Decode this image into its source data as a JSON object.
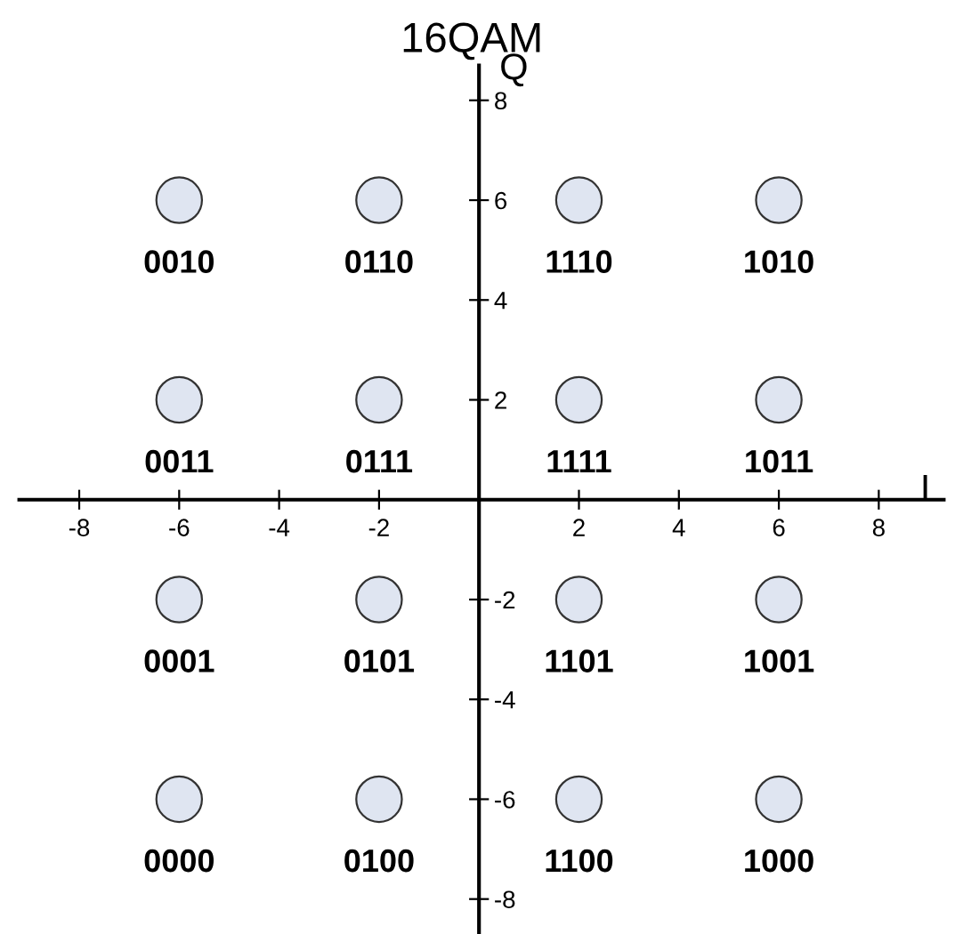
{
  "chart_data": {
    "type": "scatter",
    "title": "16QAM",
    "xlabel": "I",
    "ylabel": "Q",
    "x": [
      -6,
      -2,
      2,
      6,
      -6,
      -2,
      2,
      6,
      -6,
      -2,
      2,
      6,
      -6,
      -2,
      2,
      6
    ],
    "series": [
      {
        "color": "#dfe5f1",
        "values": [
          6,
          6,
          6,
          6,
          2,
          2,
          2,
          2,
          -2,
          -2,
          -2,
          -2,
          -6,
          -6,
          -6,
          -6
        ]
      }
    ],
    "annotations": [
      {
        "text": "0010",
        "x": -6,
        "y": 6
      },
      {
        "text": "0110",
        "x": -2,
        "y": 6
      },
      {
        "text": "1110",
        "x": 2,
        "y": 6
      },
      {
        "text": "1010",
        "x": 6,
        "y": 6
      },
      {
        "text": "0011",
        "x": -6,
        "y": 2
      },
      {
        "text": "0111",
        "x": -2,
        "y": 2
      },
      {
        "text": "1111",
        "x": 2,
        "y": 2
      },
      {
        "text": "1011",
        "x": 6,
        "y": 2
      },
      {
        "text": "0001",
        "x": -6,
        "y": -2
      },
      {
        "text": "0101",
        "x": -2,
        "y": -2
      },
      {
        "text": "1101",
        "x": 2,
        "y": -2
      },
      {
        "text": "1001",
        "x": 6,
        "y": -2
      },
      {
        "text": "0000",
        "x": -6,
        "y": -6
      },
      {
        "text": "0100",
        "x": -2,
        "y": -6
      },
      {
        "text": "1100",
        "x": 2,
        "y": -6
      },
      {
        "text": "1000",
        "x": 6,
        "y": -6
      }
    ],
    "xlim": [
      -9.2,
      9.3
    ],
    "ylim": [
      -8.7,
      8.7
    ],
    "xticks": [
      -8,
      -6,
      -4,
      -2,
      2,
      4,
      6,
      8
    ],
    "yticks": [
      -8,
      -6,
      -4,
      -2,
      2,
      4,
      6,
      8
    ],
    "marker": "circle",
    "grid": false,
    "legend": false
  }
}
